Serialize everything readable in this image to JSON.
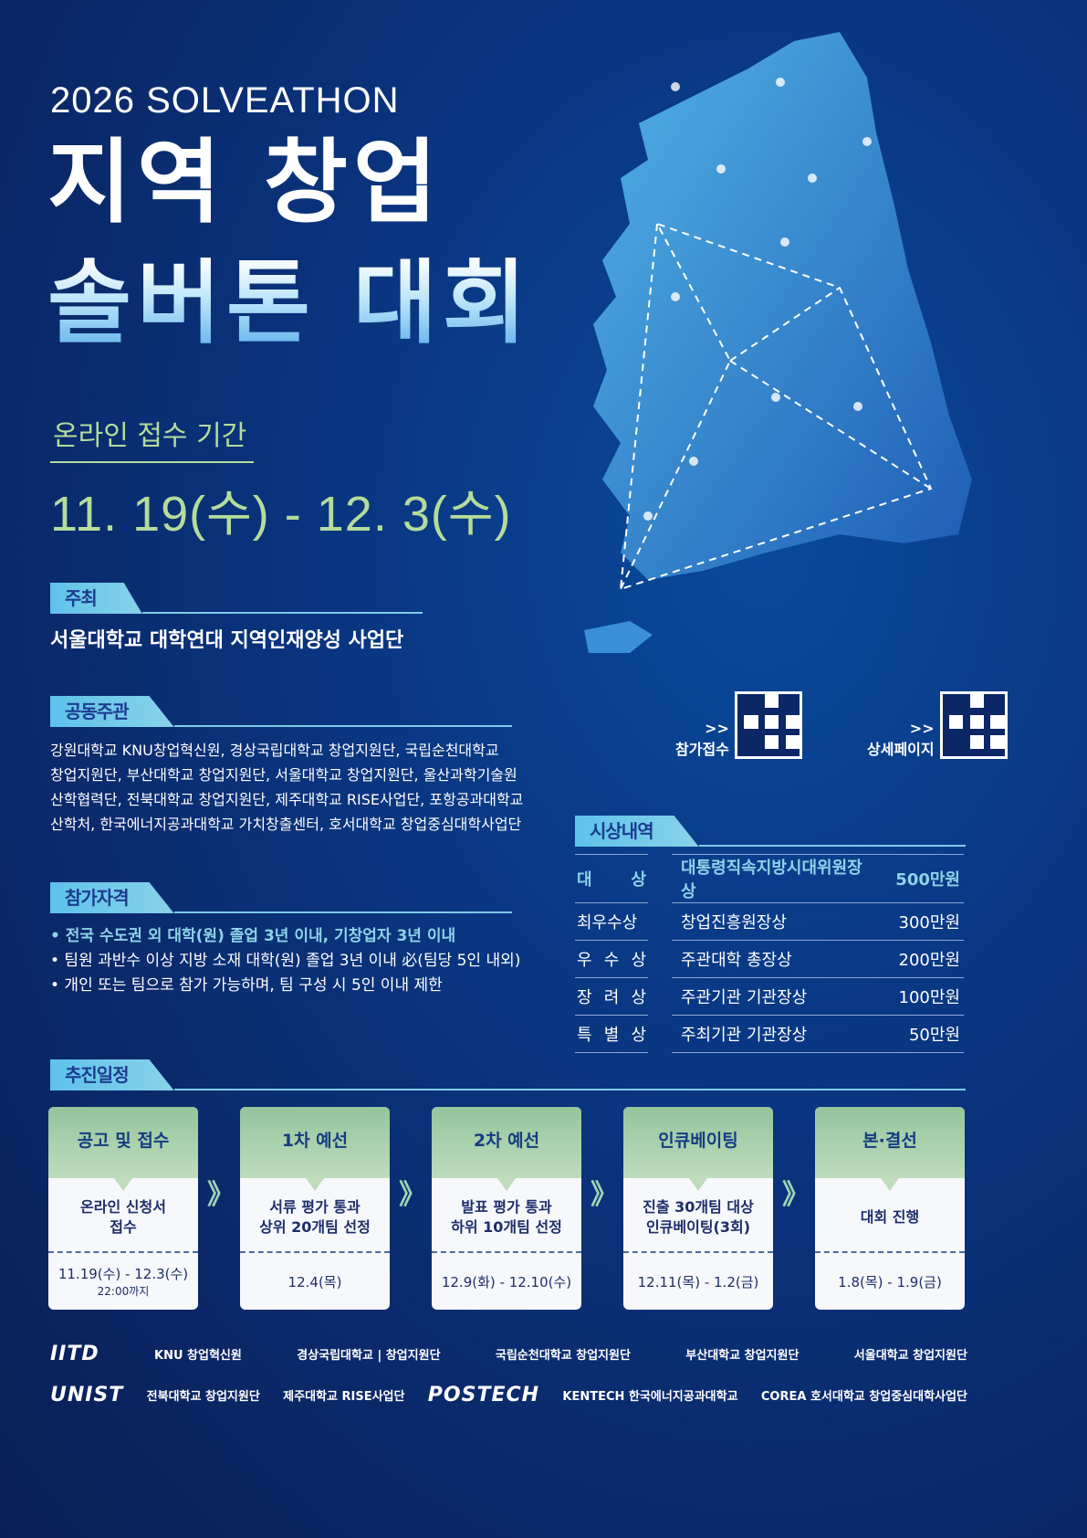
{
  "header": {
    "subtitle": "2026 SOLVEATHON",
    "title_line1": "지역 창업",
    "title_line2": "솔버톤 대회"
  },
  "application": {
    "label": "온라인 접수 기간",
    "period": "11. 19(수) - 12. 3(수)"
  },
  "host": {
    "tag": "주최",
    "text": "서울대학교 대학연대 지역인재양성 사업단"
  },
  "co_host": {
    "tag": "공동주관",
    "lines": [
      "강원대학교 KNU창업혁신원, 경상국립대학교 창업지원단, 국립순천대학교",
      "창업지원단, 부산대학교 창업지원단, 서울대학교 창업지원단, 울산과학기술원",
      "산학협력단, 전북대학교 창업지원단, 제주대학교 RISE사업단, 포항공과대학교",
      "산학처, 한국에너지공과대학교 가치창출센터, 호서대학교 창업중심대학사업단"
    ]
  },
  "eligibility": {
    "tag": "참가자격",
    "items": [
      "• 전국 수도권 외 대학(원) 졸업 3년 이내, 기창업자 3년 이내",
      "• 팀원 과반수 이상 지방 소재 대학(원) 졸업 3년 이내 必(팀당 5인 내외)",
      "• 개인 또는 팀으로 참가 가능하며, 팀 구성 시 5인 이내 제한"
    ]
  },
  "qr": [
    {
      "arrow": ">>",
      "label": "참가접수"
    },
    {
      "arrow": ">>",
      "label": "상세페이지"
    }
  ],
  "awards": {
    "tag": "시상내역",
    "rows": [
      {
        "grade": "대 상",
        "name": "대통령직속지방시대위원장상",
        "prize": "500만원"
      },
      {
        "grade": "최우수상",
        "name": "창업진흥원장상",
        "prize": "300만원"
      },
      {
        "grade": "우 수 상",
        "name": "주관대학 총장상",
        "prize": "200만원"
      },
      {
        "grade": "장 려 상",
        "name": "주관기관 기관장상",
        "prize": "100만원"
      },
      {
        "grade": "특 별 상",
        "name": "주최기관 기관장상",
        "prize": "50만원"
      }
    ]
  },
  "schedule": {
    "tag": "추진일정",
    "arrow": "》",
    "steps": [
      {
        "title": "공고 및 접수",
        "desc1": "온라인 신청서",
        "desc2": "접수",
        "date": "11.19(수) - 12.3(수)",
        "note": "22:00까지"
      },
      {
        "title": "1차 예선",
        "desc1": "서류 평가 통과",
        "desc2": "상위 20개팀 선정",
        "date": "12.4(목)",
        "note": ""
      },
      {
        "title": "2차 예선",
        "desc1": "발표 평가 통과",
        "desc2": "하위 10개팀 선정",
        "date": "12.9(화) - 12.10(수)",
        "note": ""
      },
      {
        "title": "인큐베이팅",
        "desc1": "진출 30개팀 대상",
        "desc2": "인큐베이팅(3회)",
        "date": "12.11(목) - 1.2(금)",
        "note": ""
      },
      {
        "title": "본·결선",
        "desc1": "대회 진행",
        "desc2": "",
        "date": "1.8(목) - 1.9(금)",
        "note": ""
      }
    ]
  },
  "logos": {
    "row1": [
      "IITD",
      "KNU 창업혁신원",
      "경상국립대학교 | 창업지원단",
      "국립순천대학교 창업지원단",
      "부산대학교 창업지원단",
      "서울대학교 창업지원단"
    ],
    "row2": [
      "UNIST",
      "전북대학교 창업지원단",
      "제주대학교 RISE사업단",
      "POSTECH",
      "KENTECH 한국에너지공과대학교",
      "COREA 호서대학교 창업중심대학사업단"
    ]
  },
  "colors": {
    "background": "#0b2a6e",
    "accent_green": "#b5dc9a",
    "tag_blue": "#5ec2ea",
    "highlight": "#8fd3ea"
  }
}
